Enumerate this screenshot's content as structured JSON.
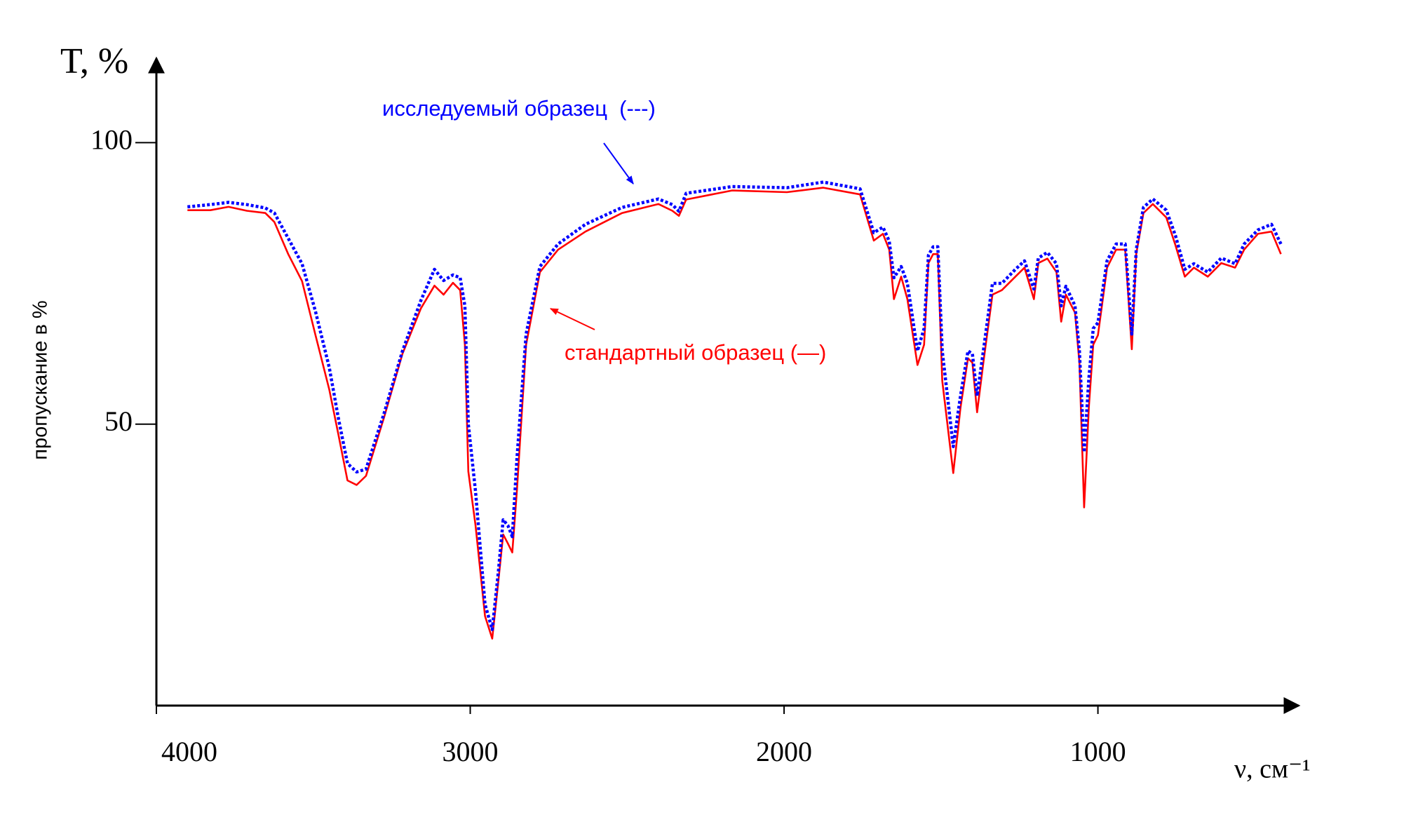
{
  "chart_data": {
    "type": "line",
    "y_axis_symbol": "T, %",
    "ylabel": "пропускание в %",
    "xlabel": "ν, см⁻¹",
    "x": [
      3901,
      3828,
      3770,
      3712,
      3653,
      3624,
      3580,
      3536,
      3493,
      3449,
      3420,
      3391,
      3362,
      3332,
      3274,
      3216,
      3157,
      3114,
      3085,
      3055,
      3032,
      3017,
      3006,
      2983,
      2953,
      2930,
      2910,
      2895,
      2880,
      2866,
      2851,
      2822,
      2778,
      2720,
      2633,
      2516,
      2400,
      2356,
      2335,
      2312,
      2166,
      1991,
      1875,
      1758,
      1714,
      1685,
      1665,
      1650,
      1627,
      1607,
      1575,
      1554,
      1540,
      1525,
      1510,
      1496,
      1461,
      1438,
      1414,
      1400,
      1385,
      1365,
      1336,
      1306,
      1263,
      1234,
      1204,
      1190,
      1161,
      1132,
      1117,
      1102,
      1073,
      1059,
      1044,
      1029,
      1015,
      1000,
      971,
      942,
      913,
      892,
      878,
      855,
      825,
      782,
      753,
      723,
      694,
      650,
      607,
      563,
      534,
      490,
      447,
      417
    ],
    "series": [
      {
        "name": "стандартный образец (—)",
        "color": "#ff0000",
        "style": "solid",
        "values": [
          88,
          88,
          88.6,
          87.9,
          87.5,
          85.9,
          80.2,
          75.4,
          65.8,
          56.1,
          48.1,
          40,
          39.2,
          40.8,
          51.3,
          62.5,
          70.6,
          74.6,
          73,
          75.1,
          73.8,
          64.1,
          41.6,
          32,
          15.9,
          11.9,
          22.3,
          30.4,
          28.8,
          27.2,
          38.4,
          64.1,
          77,
          81,
          84.2,
          87.5,
          89.1,
          87.9,
          87,
          89.9,
          91.5,
          91.2,
          92,
          90.8,
          82.6,
          83.8,
          81,
          72.2,
          76.2,
          72.2,
          60.5,
          64.1,
          78.6,
          80.2,
          80.2,
          57.7,
          41.3,
          52.9,
          61.7,
          60.9,
          52.1,
          60.9,
          73,
          73.8,
          76.2,
          77.8,
          72.2,
          78.6,
          79.4,
          77,
          68.2,
          73,
          69.8,
          60.9,
          35.2,
          52.9,
          64.1,
          65.8,
          77.8,
          81,
          81,
          63.3,
          80.2,
          87.5,
          89.1,
          86.7,
          81.8,
          76.2,
          77.8,
          76.2,
          78.6,
          77.8,
          81,
          83.8,
          84.2,
          80.2
        ]
      },
      {
        "name": "исследуемый образец  (---)",
        "color": "#0000ff",
        "style": "dotted",
        "values": [
          88.6,
          89,
          89.4,
          89,
          88.4,
          87.5,
          83,
          78.5,
          70,
          60,
          51,
          43,
          41.5,
          42,
          52,
          63,
          72,
          77.5,
          75.5,
          76.5,
          76,
          71,
          50,
          38,
          18,
          13.5,
          24,
          33,
          32,
          30,
          44,
          66,
          78,
          82,
          85.5,
          88.5,
          90,
          89,
          87.8,
          91,
          92.2,
          92,
          93,
          91.8,
          84,
          85,
          82.5,
          76,
          78,
          75,
          63,
          67,
          80,
          81.5,
          81.5,
          63,
          46,
          55,
          63,
          62.5,
          55,
          63,
          75,
          75,
          77.5,
          79,
          74,
          79.5,
          80.5,
          78.5,
          71,
          74.5,
          71,
          63,
          45,
          58,
          67,
          68,
          79,
          82,
          82,
          66,
          81,
          88.5,
          90,
          88,
          83.5,
          77.5,
          78.5,
          77,
          79.5,
          78.5,
          82,
          84.5,
          85.5,
          82
        ]
      }
    ],
    "xlim": [
      4000,
      360
    ],
    "xticks": [
      4000,
      3000,
      2000,
      1000
    ],
    "ylim": [
      0,
      115
    ],
    "yticks": [
      50,
      100
    ],
    "grid": false
  }
}
